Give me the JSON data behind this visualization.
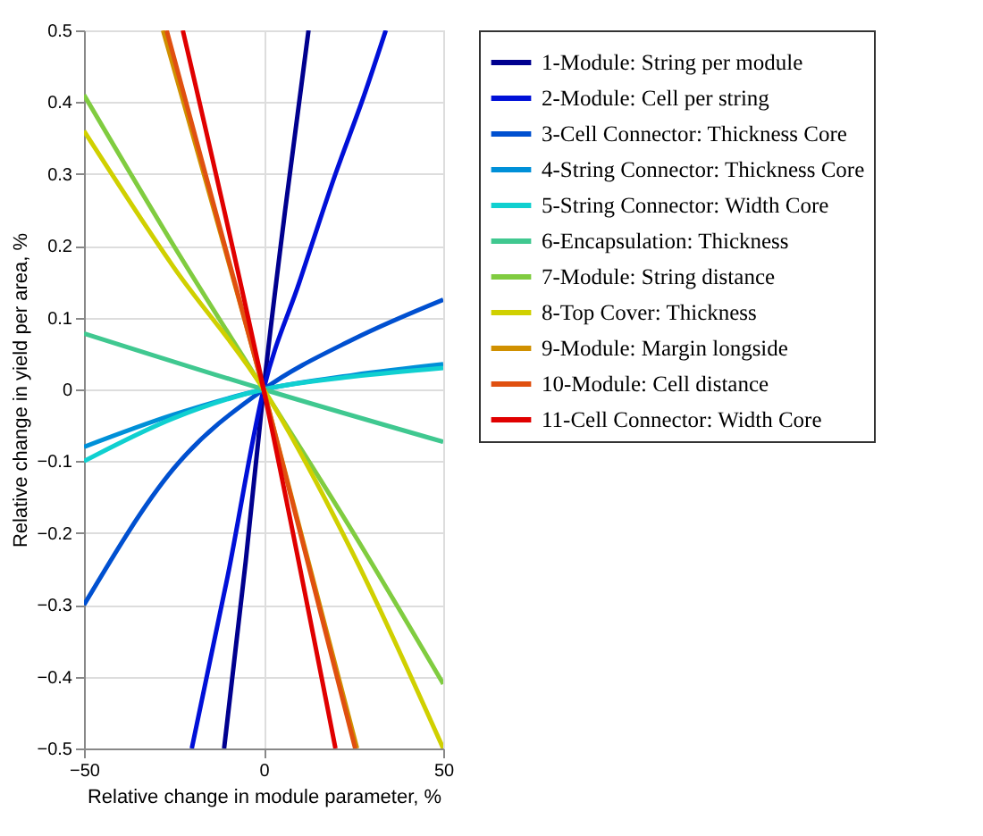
{
  "chart_data": {
    "type": "line",
    "xlabel": "Relative change in module parameter, %",
    "ylabel": "Relative change in yield per area, %",
    "xlim": [
      -50,
      50
    ],
    "ylim": [
      -0.5,
      0.5
    ],
    "xticks": [
      -50,
      0,
      50
    ],
    "yticks": [
      -0.5,
      -0.4,
      -0.3,
      -0.2,
      -0.1,
      0,
      0.1,
      0.2,
      0.3,
      0.4,
      0.5
    ],
    "grid": true,
    "legend": "right",
    "marker": "none",
    "line_style": "solid",
    "series": [
      {
        "name": "1-Module: String per module",
        "color": "#00008f",
        "x": [
          -11,
          -5,
          0,
          6,
          12.5
        ],
        "values": [
          -0.5,
          -0.24,
          0,
          0.25,
          0.5
        ]
      },
      {
        "name": "2-Module: Cell per string",
        "color": "#0010d8",
        "x": [
          -20,
          -10,
          0,
          10,
          20,
          28,
          34
        ],
        "values": [
          -0.5,
          -0.26,
          0,
          0.15,
          0.3,
          0.41,
          0.5
        ]
      },
      {
        "name": "3-Cell Connector: Thickness Core",
        "color": "#0050d0",
        "x": [
          -50,
          -25,
          0,
          25,
          50
        ],
        "values": [
          -0.3,
          -0.11,
          0,
          0.07,
          0.125
        ]
      },
      {
        "name": "4-String Connector: Thickness Core",
        "color": "#0090d8",
        "x": [
          -50,
          -25,
          0,
          25,
          50
        ],
        "values": [
          -0.08,
          -0.035,
          0,
          0.02,
          0.035
        ]
      },
      {
        "name": "5-String Connector: Width Core",
        "color": "#10d0d0",
        "x": [
          -50,
          -25,
          0,
          25,
          50
        ],
        "values": [
          -0.1,
          -0.04,
          0,
          0.018,
          0.03
        ]
      },
      {
        "name": "6-Encapsulation: Thickness",
        "color": "#40c890",
        "x": [
          -50,
          0,
          50
        ],
        "values": [
          0.078,
          0,
          -0.073
        ]
      },
      {
        "name": "7-Module: String distance",
        "color": "#80cc40",
        "x": [
          -50,
          -25,
          0,
          25,
          50
        ],
        "values": [
          0.41,
          0.2,
          0,
          -0.2,
          -0.41
        ]
      },
      {
        "name": "8-Top Cover: Thickness",
        "color": "#d0d000",
        "x": [
          -50,
          -25,
          0,
          25,
          50
        ],
        "values": [
          0.36,
          0.17,
          0,
          -0.23,
          -0.5
        ]
      },
      {
        "name": "9-Module: Margin longside",
        "color": "#d09000",
        "x": [
          -28,
          0,
          26
        ],
        "values": [
          0.5,
          0,
          -0.5
        ]
      },
      {
        "name": "10-Module: Cell distance",
        "color": "#e05010",
        "x": [
          -27,
          0,
          25.5
        ],
        "values": [
          0.5,
          0,
          -0.5
        ]
      },
      {
        "name": "11-Cell Connector: Width Core",
        "color": "#e00000",
        "x": [
          -22.5,
          0,
          20
        ],
        "values": [
          0.5,
          0,
          -0.5
        ]
      }
    ]
  }
}
